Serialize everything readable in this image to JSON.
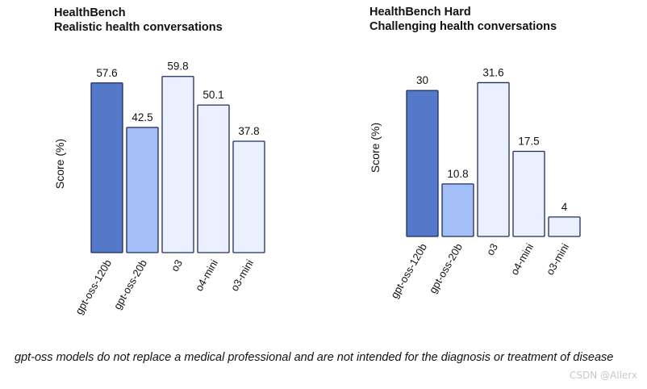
{
  "chart_data": [
    {
      "type": "bar",
      "title": "HealthBench",
      "subtitle": "Realistic health conversations",
      "ylabel": "Score (%)",
      "xlabel": "",
      "categories": [
        "gpt-oss-120b",
        "gpt-oss-20b",
        "o3",
        "o4-mini",
        "o3-mini"
      ],
      "values": [
        57.6,
        42.5,
        59.8,
        50.1,
        37.8
      ],
      "value_labels": [
        "57.6",
        "42.5",
        "59.8",
        "50.1",
        "37.8"
      ],
      "colors": [
        "#5479c8",
        "#a4bff7",
        "#eaf0fd",
        "#eaf0fd",
        "#eaf0fd"
      ],
      "grid": false
    },
    {
      "type": "bar",
      "title": "HealthBench Hard",
      "subtitle": "Challenging health conversations",
      "ylabel": "Score (%)",
      "xlabel": "",
      "categories": [
        "gpt-oss-120b",
        "gpt-oss-20b",
        "o3",
        "o4-mini",
        "o3-mini"
      ],
      "values": [
        30,
        10.8,
        31.6,
        17.5,
        4
      ],
      "value_labels": [
        "30",
        "10.8",
        "31.6",
        "17.5",
        "4"
      ],
      "colors": [
        "#5479c8",
        "#a4bff7",
        "#eaf0fd",
        "#eaf0fd",
        "#eaf0fd"
      ],
      "grid": false
    }
  ],
  "footnote": "gpt-oss models do not replace a medical professional and are not intended for the diagnosis or treatment of disease",
  "watermark": "CSDN @Allerx",
  "bar_stroke_color": "#1f2d55"
}
